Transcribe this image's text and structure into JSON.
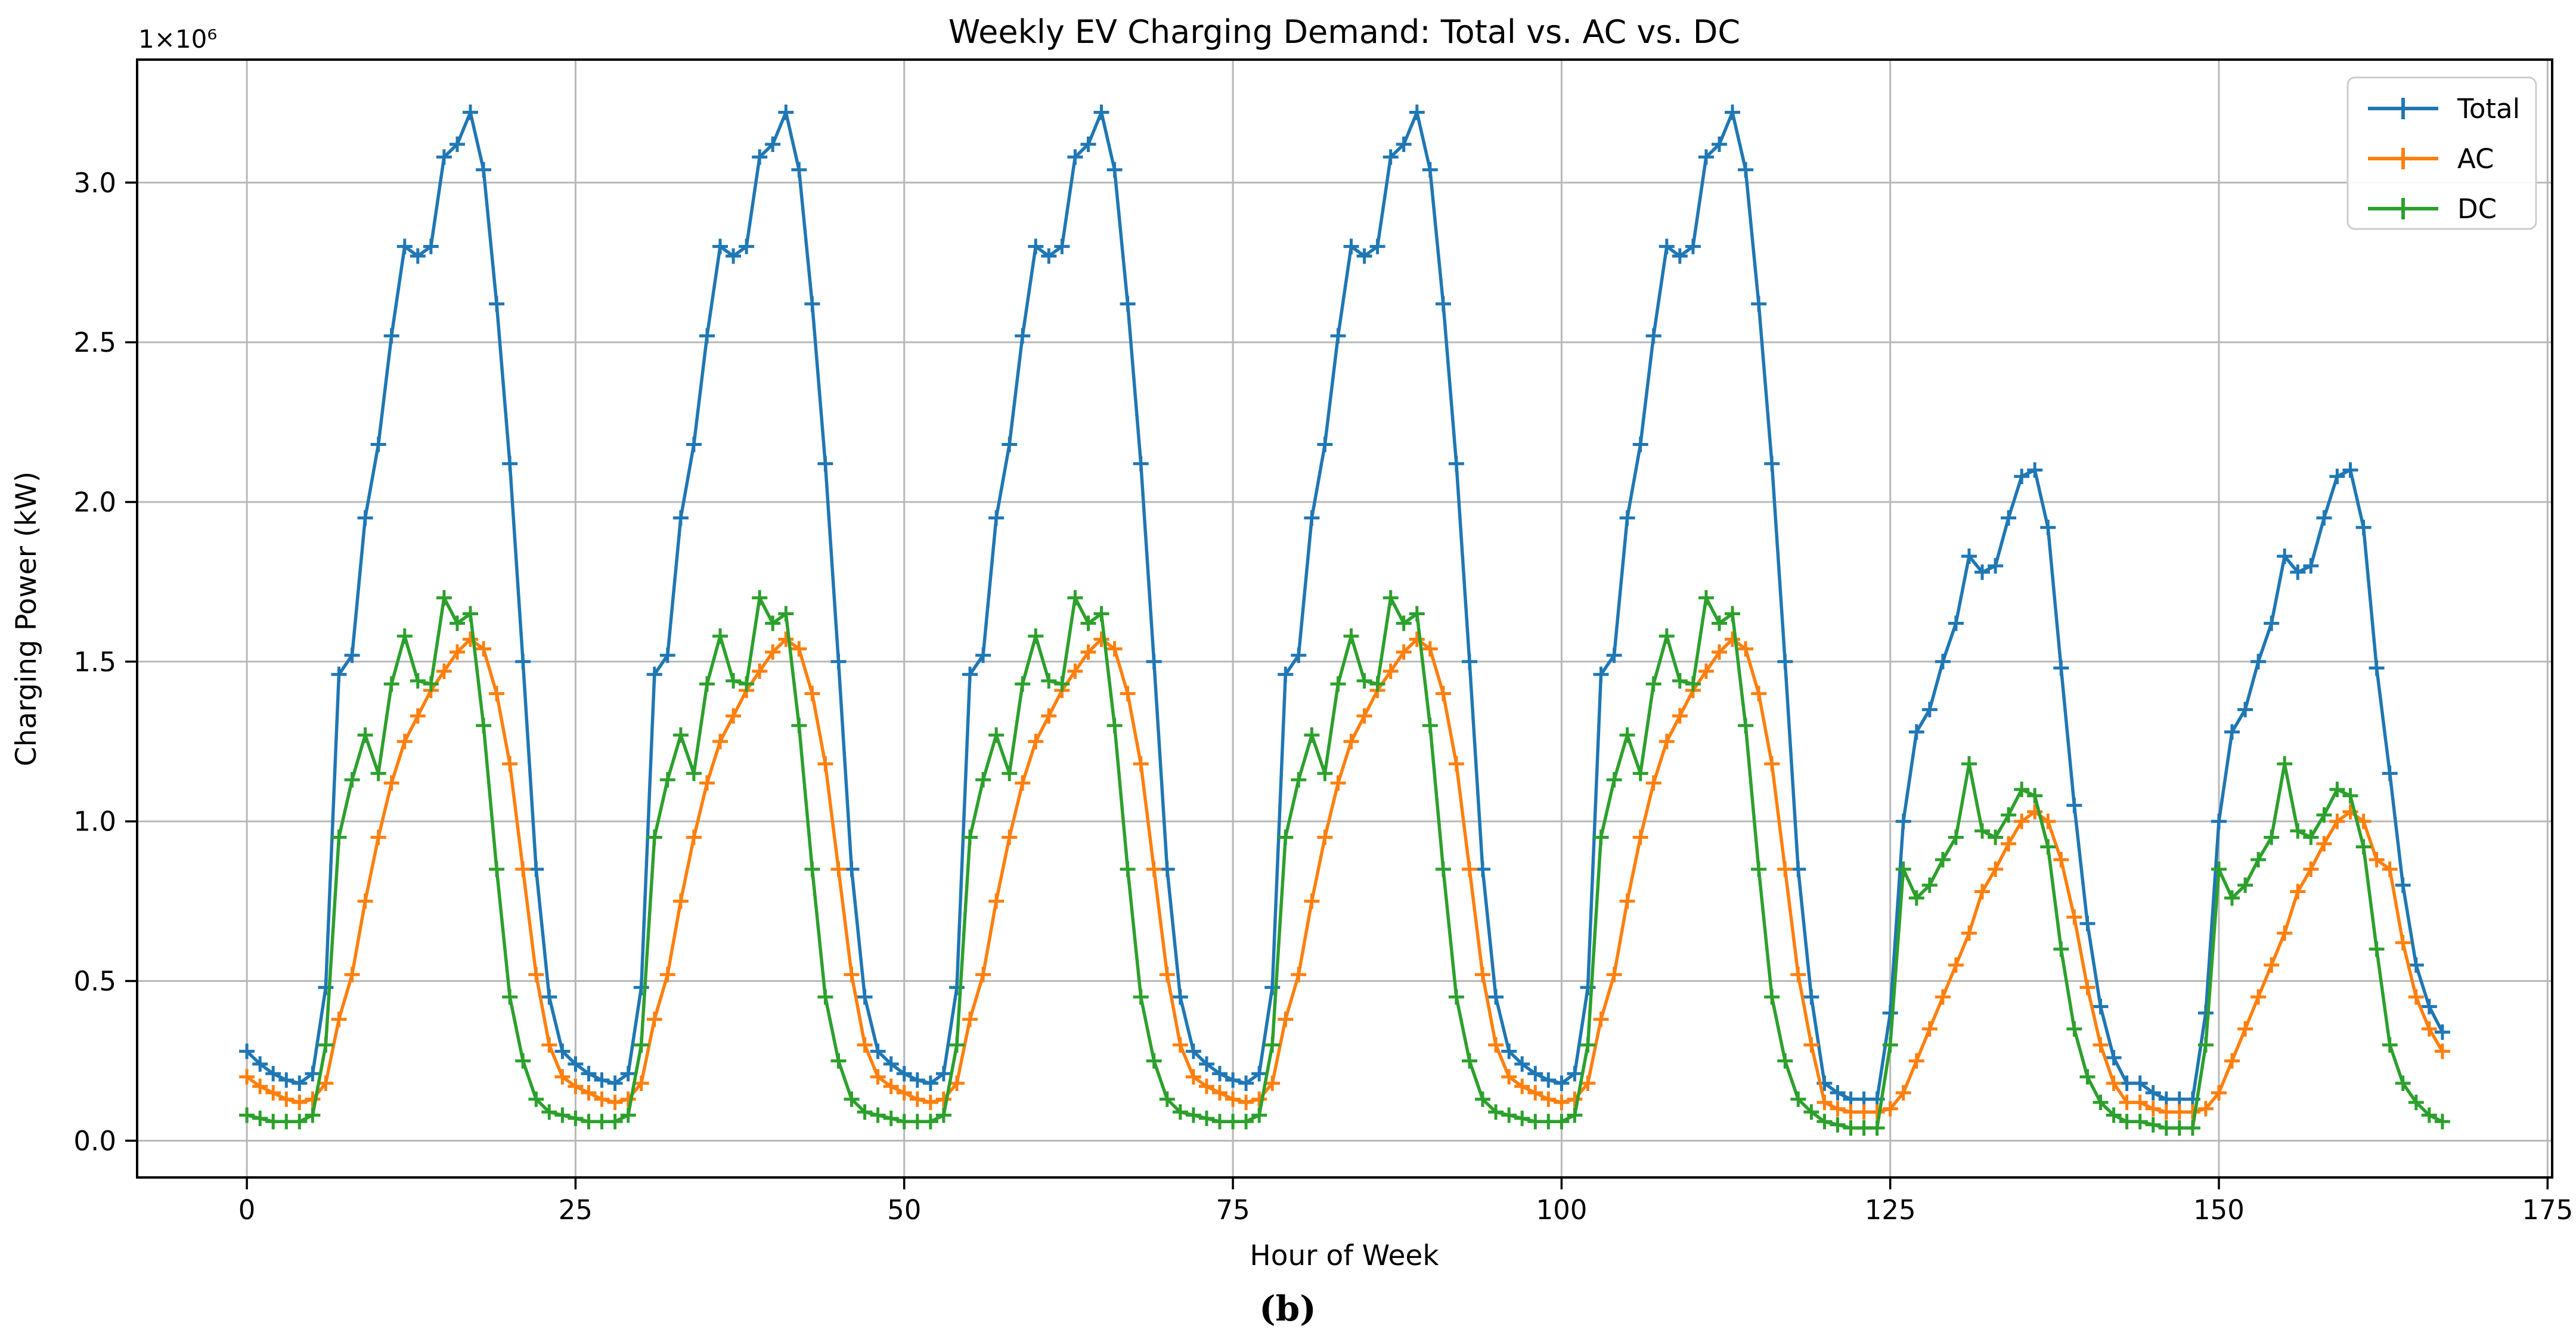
{
  "figure": {
    "title": "Weekly EV Charging Demand: Total vs. AC vs. DC",
    "caption": "(b)",
    "background_color": "#ffffff"
  },
  "axes": {
    "x_label": "Hour of Week",
    "y_label": "Charging Power (kW)",
    "y_offset_text": "1×10⁶",
    "x_tick_labels": [
      "0",
      "25",
      "50",
      "75",
      "100",
      "125",
      "150",
      "175"
    ],
    "x_tick_values": [
      0,
      25,
      50,
      75,
      100,
      125,
      150,
      175
    ],
    "y_tick_labels": [
      "0.0",
      "0.5",
      "1.0",
      "1.5",
      "2.0",
      "2.5",
      "3.0"
    ],
    "y_tick_values": [
      0,
      0.5,
      1.0,
      1.5,
      2.0,
      2.5,
      3.0
    ],
    "xlim": [
      -8.35,
      175.35
    ],
    "ylim": [
      -0.115,
      3.385
    ],
    "grid": true,
    "grid_color": "#b8b8b8",
    "spine_color": "#000000"
  },
  "legend": {
    "location": "upper right",
    "items": [
      {
        "label": "Total",
        "color": "#1f77b4",
        "marker": "+"
      },
      {
        "label": "AC",
        "color": "#ff7f0e",
        "marker": "+"
      },
      {
        "label": "DC",
        "color": "#2ca02c",
        "marker": "+"
      }
    ]
  },
  "chart_data": {
    "type": "line",
    "title": "Weekly EV Charging Demand: Total vs. AC vs. DC",
    "xlabel": "Hour of Week",
    "ylabel": "Charging Power (kW)",
    "x_unit": "hour of week (0-167)",
    "y_unit": "kW",
    "y_scale_factor": 1000000,
    "xlim": [
      -8.35,
      175.35
    ],
    "ylim": [
      -0.115,
      3.385
    ],
    "legend_position": "upper right",
    "grid": true,
    "marker": "+",
    "x": [
      0,
      1,
      2,
      3,
      4,
      5,
      6,
      7,
      8,
      9,
      10,
      11,
      12,
      13,
      14,
      15,
      16,
      17,
      18,
      19,
      20,
      21,
      22,
      23,
      24,
      25,
      26,
      27,
      28,
      29,
      30,
      31,
      32,
      33,
      34,
      35,
      36,
      37,
      38,
      39,
      40,
      41,
      42,
      43,
      44,
      45,
      46,
      47,
      48,
      49,
      50,
      51,
      52,
      53,
      54,
      55,
      56,
      57,
      58,
      59,
      60,
      61,
      62,
      63,
      64,
      65,
      66,
      67,
      68,
      69,
      70,
      71,
      72,
      73,
      74,
      75,
      76,
      77,
      78,
      79,
      80,
      81,
      82,
      83,
      84,
      85,
      86,
      87,
      88,
      89,
      90,
      91,
      92,
      93,
      94,
      95,
      96,
      97,
      98,
      99,
      100,
      101,
      102,
      103,
      104,
      105,
      106,
      107,
      108,
      109,
      110,
      111,
      112,
      113,
      114,
      115,
      116,
      117,
      118,
      119,
      120,
      121,
      122,
      123,
      124,
      125,
      126,
      127,
      128,
      129,
      130,
      131,
      132,
      133,
      134,
      135,
      136,
      137,
      138,
      139,
      140,
      141,
      142,
      143,
      144,
      145,
      146,
      147,
      148,
      149,
      150,
      151,
      152,
      153,
      154,
      155,
      156,
      157,
      158,
      159,
      160,
      161,
      162,
      163,
      164,
      165,
      166,
      167
    ],
    "series": [
      {
        "name": "Total",
        "color": "#1f77b4",
        "values_in_millions_kW": [
          0.28,
          0.24,
          0.21,
          0.19,
          0.18,
          0.21,
          0.48,
          1.46,
          1.52,
          1.95,
          2.18,
          2.52,
          2.8,
          2.77,
          2.8,
          3.08,
          3.12,
          3.22,
          3.04,
          2.62,
          2.12,
          1.5,
          0.85,
          0.45,
          0.28,
          0.24,
          0.21,
          0.19,
          0.18,
          0.21,
          0.48,
          1.46,
          1.52,
          1.95,
          2.18,
          2.52,
          2.8,
          2.77,
          2.8,
          3.08,
          3.12,
          3.22,
          3.04,
          2.62,
          2.12,
          1.5,
          0.85,
          0.45,
          0.28,
          0.24,
          0.21,
          0.19,
          0.18,
          0.21,
          0.48,
          1.46,
          1.52,
          1.95,
          2.18,
          2.52,
          2.8,
          2.77,
          2.8,
          3.08,
          3.12,
          3.22,
          3.04,
          2.62,
          2.12,
          1.5,
          0.85,
          0.45,
          0.28,
          0.24,
          0.21,
          0.19,
          0.18,
          0.21,
          0.48,
          1.46,
          1.52,
          1.95,
          2.18,
          2.52,
          2.8,
          2.77,
          2.8,
          3.08,
          3.12,
          3.22,
          3.04,
          2.62,
          2.12,
          1.5,
          0.85,
          0.45,
          0.28,
          0.24,
          0.21,
          0.19,
          0.18,
          0.21,
          0.48,
          1.46,
          1.52,
          1.95,
          2.18,
          2.52,
          2.8,
          2.77,
          2.8,
          3.08,
          3.12,
          3.22,
          3.04,
          2.62,
          2.12,
          1.5,
          0.85,
          0.45,
          0.18,
          0.15,
          0.13,
          0.13,
          0.13,
          0.4,
          1.0,
          1.28,
          1.35,
          1.5,
          1.62,
          1.83,
          1.78,
          1.8,
          1.95,
          2.08,
          2.1,
          1.92,
          1.48,
          1.05,
          0.68,
          0.42,
          0.26,
          0.18,
          0.18,
          0.15,
          0.13,
          0.13,
          0.13,
          0.4,
          1.0,
          1.28,
          1.35,
          1.5,
          1.62,
          1.83,
          1.78,
          1.8,
          1.95,
          2.08,
          2.1,
          1.92,
          1.48,
          1.15,
          0.8,
          0.55,
          0.42,
          0.34
        ]
      },
      {
        "name": "AC",
        "color": "#ff7f0e",
        "values_in_millions_kW": [
          0.2,
          0.17,
          0.15,
          0.13,
          0.12,
          0.13,
          0.18,
          0.38,
          0.52,
          0.75,
          0.95,
          1.12,
          1.25,
          1.33,
          1.41,
          1.47,
          1.53,
          1.57,
          1.54,
          1.4,
          1.18,
          0.85,
          0.52,
          0.3,
          0.2,
          0.17,
          0.15,
          0.13,
          0.12,
          0.13,
          0.18,
          0.38,
          0.52,
          0.75,
          0.95,
          1.12,
          1.25,
          1.33,
          1.41,
          1.47,
          1.53,
          1.57,
          1.54,
          1.4,
          1.18,
          0.85,
          0.52,
          0.3,
          0.2,
          0.17,
          0.15,
          0.13,
          0.12,
          0.13,
          0.18,
          0.38,
          0.52,
          0.75,
          0.95,
          1.12,
          1.25,
          1.33,
          1.41,
          1.47,
          1.53,
          1.57,
          1.54,
          1.4,
          1.18,
          0.85,
          0.52,
          0.3,
          0.2,
          0.17,
          0.15,
          0.13,
          0.12,
          0.13,
          0.18,
          0.38,
          0.52,
          0.75,
          0.95,
          1.12,
          1.25,
          1.33,
          1.41,
          1.47,
          1.53,
          1.57,
          1.54,
          1.4,
          1.18,
          0.85,
          0.52,
          0.3,
          0.2,
          0.17,
          0.15,
          0.13,
          0.12,
          0.13,
          0.18,
          0.38,
          0.52,
          0.75,
          0.95,
          1.12,
          1.25,
          1.33,
          1.41,
          1.47,
          1.53,
          1.57,
          1.54,
          1.4,
          1.18,
          0.85,
          0.52,
          0.3,
          0.12,
          0.1,
          0.09,
          0.09,
          0.09,
          0.1,
          0.15,
          0.25,
          0.35,
          0.45,
          0.55,
          0.65,
          0.78,
          0.85,
          0.93,
          1.0,
          1.03,
          1.0,
          0.88,
          0.7,
          0.48,
          0.3,
          0.18,
          0.12,
          0.12,
          0.1,
          0.09,
          0.09,
          0.09,
          0.1,
          0.15,
          0.25,
          0.35,
          0.45,
          0.55,
          0.65,
          0.78,
          0.85,
          0.93,
          1.0,
          1.03,
          1.0,
          0.88,
          0.85,
          0.62,
          0.45,
          0.35,
          0.28
        ]
      },
      {
        "name": "DC",
        "color": "#2ca02c",
        "values_in_millions_kW": [
          0.08,
          0.07,
          0.06,
          0.06,
          0.06,
          0.08,
          0.3,
          0.95,
          1.13,
          1.27,
          1.15,
          1.43,
          1.58,
          1.44,
          1.43,
          1.7,
          1.62,
          1.65,
          1.3,
          0.85,
          0.45,
          0.25,
          0.13,
          0.09,
          0.08,
          0.07,
          0.06,
          0.06,
          0.06,
          0.08,
          0.3,
          0.95,
          1.13,
          1.27,
          1.15,
          1.43,
          1.58,
          1.44,
          1.43,
          1.7,
          1.62,
          1.65,
          1.3,
          0.85,
          0.45,
          0.25,
          0.13,
          0.09,
          0.08,
          0.07,
          0.06,
          0.06,
          0.06,
          0.08,
          0.3,
          0.95,
          1.13,
          1.27,
          1.15,
          1.43,
          1.58,
          1.44,
          1.43,
          1.7,
          1.62,
          1.65,
          1.3,
          0.85,
          0.45,
          0.25,
          0.13,
          0.09,
          0.08,
          0.07,
          0.06,
          0.06,
          0.06,
          0.08,
          0.3,
          0.95,
          1.13,
          1.27,
          1.15,
          1.43,
          1.58,
          1.44,
          1.43,
          1.7,
          1.62,
          1.65,
          1.3,
          0.85,
          0.45,
          0.25,
          0.13,
          0.09,
          0.08,
          0.07,
          0.06,
          0.06,
          0.06,
          0.08,
          0.3,
          0.95,
          1.13,
          1.27,
          1.15,
          1.43,
          1.58,
          1.44,
          1.43,
          1.7,
          1.62,
          1.65,
          1.3,
          0.85,
          0.45,
          0.25,
          0.13,
          0.09,
          0.06,
          0.05,
          0.04,
          0.04,
          0.04,
          0.3,
          0.85,
          0.76,
          0.8,
          0.88,
          0.95,
          1.18,
          0.97,
          0.95,
          1.02,
          1.1,
          1.08,
          0.92,
          0.6,
          0.35,
          0.2,
          0.12,
          0.08,
          0.06,
          0.06,
          0.05,
          0.04,
          0.04,
          0.04,
          0.3,
          0.85,
          0.76,
          0.8,
          0.88,
          0.95,
          1.18,
          0.97,
          0.95,
          1.02,
          1.1,
          1.08,
          0.92,
          0.6,
          0.3,
          0.18,
          0.12,
          0.08,
          0.06
        ]
      }
    ]
  }
}
